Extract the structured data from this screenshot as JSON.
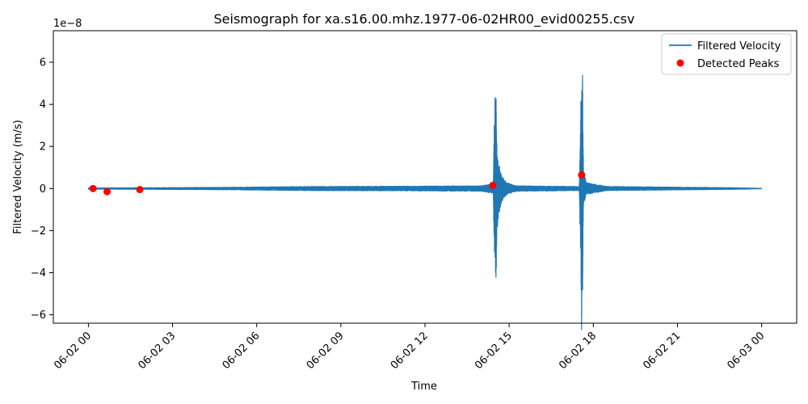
{
  "chart_data": {
    "type": "line",
    "title": "Seismograph for xa.s16.00.mhz.1977-06-02HR00_evid00255.csv",
    "xlabel": "Time",
    "ylabel": "Filtered Velocity (m/s)",
    "y_offset_label": "1e−8",
    "xlim": [
      "1977-06-01 22:45",
      "1977-06-03 01:15"
    ],
    "ylim": [
      -6.4,
      7.5
    ],
    "x_ticks": [
      {
        "t": "1977-06-02 00:00",
        "label": "06-02 00"
      },
      {
        "t": "1977-06-02 03:00",
        "label": "06-02 03"
      },
      {
        "t": "1977-06-02 06:00",
        "label": "06-02 06"
      },
      {
        "t": "1977-06-02 09:00",
        "label": "06-02 09"
      },
      {
        "t": "1977-06-02 12:00",
        "label": "06-02 12"
      },
      {
        "t": "1977-06-02 15:00",
        "label": "06-02 15"
      },
      {
        "t": "1977-06-02 18:00",
        "label": "06-02 18"
      },
      {
        "t": "1977-06-02 21:00",
        "label": "06-02 21"
      },
      {
        "t": "1977-06-03 00:00",
        "label": "06-03 00"
      }
    ],
    "y_ticks": [
      {
        "v": -6,
        "label": "−6"
      },
      {
        "v": -4,
        "label": "−4"
      },
      {
        "v": -2,
        "label": "−2"
      },
      {
        "v": 0,
        "label": "0"
      },
      {
        "v": 2,
        "label": "2"
      },
      {
        "v": 4,
        "label": "4"
      },
      {
        "v": 6,
        "label": "6"
      }
    ],
    "series": [
      {
        "name": "Filtered Velocity",
        "color": "#1f77b4",
        "type": "line",
        "envelope": [
          {
            "t": "1977-06-02 00:00",
            "amp": 0.05
          },
          {
            "t": "1977-06-02 02:00",
            "amp": 0.06
          },
          {
            "t": "1977-06-02 05:00",
            "amp": 0.08
          },
          {
            "t": "1977-06-02 08:00",
            "amp": 0.12
          },
          {
            "t": "1977-06-02 11:00",
            "amp": 0.13
          },
          {
            "t": "1977-06-02 14:00",
            "amp": 0.15
          },
          {
            "t": "1977-06-02 14:26",
            "amp": 0.25
          },
          {
            "t": "1977-06-02 14:28",
            "amp": 3.0
          },
          {
            "t": "1977-06-02 14:30",
            "amp": 4.4
          },
          {
            "t": "1977-06-02 14:32",
            "amp": 4.35
          },
          {
            "t": "1977-06-02 14:34",
            "amp": 2.1
          },
          {
            "t": "1977-06-02 14:38",
            "amp": 1.2
          },
          {
            "t": "1977-06-02 14:45",
            "amp": 0.6
          },
          {
            "t": "1977-06-02 14:55",
            "amp": 0.3
          },
          {
            "t": "1977-06-02 15:15",
            "amp": 0.15
          },
          {
            "t": "1977-06-02 17:30",
            "amp": 0.12
          },
          {
            "t": "1977-06-02 17:34",
            "amp": 5.0
          },
          {
            "t": "1977-06-02 17:35",
            "amp": 7.0
          },
          {
            "t": "1977-06-02 17:37",
            "amp": 5.5
          },
          {
            "t": "1977-06-02 17:39",
            "amp": 0.9
          },
          {
            "t": "1977-06-02 17:45",
            "amp": 0.3
          },
          {
            "t": "1977-06-02 18:30",
            "amp": 0.12
          },
          {
            "t": "1977-06-02 23:00",
            "amp": 0.06
          },
          {
            "t": "1977-06-03 00:00",
            "amp": 0.03
          }
        ]
      },
      {
        "name": "Detected Peaks",
        "color": "#ff0000",
        "type": "scatter",
        "points": [
          {
            "t": "1977-06-02 00:10",
            "y": 0.0
          },
          {
            "t": "1977-06-02 00:40",
            "y": -0.15
          },
          {
            "t": "1977-06-02 01:50",
            "y": -0.05
          },
          {
            "t": "1977-06-02 14:25",
            "y": 0.15
          },
          {
            "t": "1977-06-02 17:35",
            "y": 0.65
          }
        ]
      }
    ],
    "legend": {
      "position": "top-right"
    },
    "grid": false
  }
}
